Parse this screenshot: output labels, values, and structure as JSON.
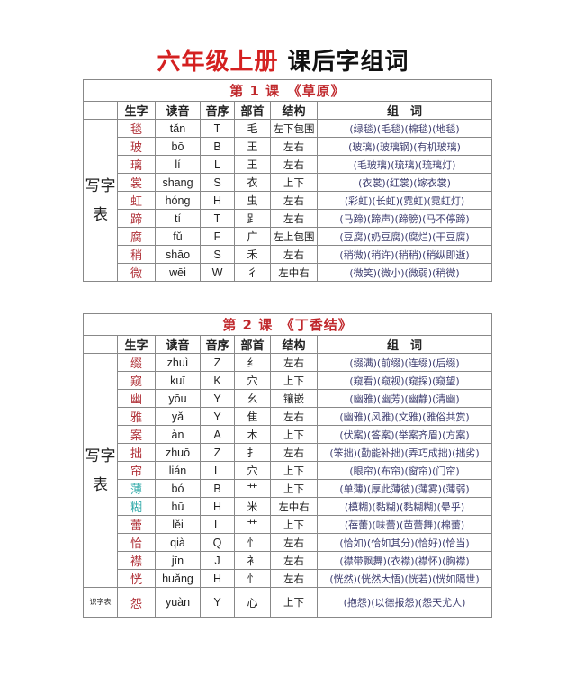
{
  "title": {
    "grade": "六年级上册",
    "subtitle": "课后字组词"
  },
  "headers": [
    "生字",
    "读音",
    "音序",
    "部首",
    "结构",
    "组　词"
  ],
  "side_label": "写字表",
  "lessons": [
    {
      "heading": "第 1 课　《草原》",
      "rows": [
        {
          "char": "毯",
          "pinyin": "tǎn",
          "initial": "T",
          "radical": "毛",
          "structure": "左下包围",
          "words": "(绿毯)(毛毯)(棉毯)(地毯)"
        },
        {
          "char": "玻",
          "pinyin": "bō",
          "initial": "B",
          "radical": "王",
          "structure": "左右",
          "words": "(玻璃)(玻璃钢)(有机玻璃)"
        },
        {
          "char": "璃",
          "pinyin": "lí",
          "initial": "L",
          "radical": "王",
          "structure": "左右",
          "words": "(毛玻璃)(琉璃)(琉璃灯)"
        },
        {
          "char": "裳",
          "pinyin": "shang",
          "initial": "S",
          "radical": "衣",
          "structure": "上下",
          "words": "(衣裳)(红裳)(嫁衣裳)"
        },
        {
          "char": "虹",
          "pinyin": "hóng",
          "initial": "H",
          "radical": "虫",
          "structure": "左右",
          "words": "(彩虹)(长虹)(霓虹)(霓虹灯)"
        },
        {
          "char": "蹄",
          "pinyin": "tí",
          "initial": "T",
          "radical": "⻊",
          "structure": "左右",
          "words": "(马蹄)(蹄声)(蹄膀)(马不停蹄)"
        },
        {
          "char": "腐",
          "pinyin": "fǔ",
          "initial": "F",
          "radical": "广",
          "structure": "左上包围",
          "words": "(豆腐)(奶豆腐)(腐烂)(干豆腐)"
        },
        {
          "char": "稍",
          "pinyin": "shāo",
          "initial": "S",
          "radical": "禾",
          "structure": "左右",
          "words": "(稍微)(稍许)(稍稍)(稍纵即逝)"
        },
        {
          "char": "微",
          "pinyin": "wēi",
          "initial": "W",
          "radical": "彳",
          "structure": "左中右",
          "words": "(微笑)(微小)(微弱)(稍微)"
        }
      ]
    },
    {
      "heading": "第 2 课　《丁香结》",
      "footer_label": "识字表",
      "rows": [
        {
          "char": "缀",
          "pinyin": "zhuì",
          "initial": "Z",
          "radical": "纟",
          "structure": "左右",
          "words": "(缀满)(前缀)(连缀)(后缀)"
        },
        {
          "char": "窥",
          "pinyin": "kuī",
          "initial": "K",
          "radical": "穴",
          "structure": "上下",
          "words": "(窥看)(窥视)(窥探)(窥望)"
        },
        {
          "char": "幽",
          "pinyin": "yōu",
          "initial": "Y",
          "radical": "幺",
          "structure": "镶嵌",
          "words": "(幽雅)(幽芳)(幽静)(清幽)"
        },
        {
          "char": "雅",
          "pinyin": "yǎ",
          "initial": "Y",
          "radical": "隹",
          "structure": "左右",
          "words": "(幽雅)(风雅)(文雅)(雅俗共赏)"
        },
        {
          "char": "案",
          "pinyin": "àn",
          "initial": "A",
          "radical": "木",
          "structure": "上下",
          "words": "(伏案)(答案)(举案齐眉)(方案)"
        },
        {
          "char": "拙",
          "pinyin": "zhuō",
          "initial": "Z",
          "radical": "扌",
          "structure": "左右",
          "words": "(笨拙)(勤能补拙)(弄巧成拙)(拙劣)"
        },
        {
          "char": "帘",
          "pinyin": "lián",
          "initial": "L",
          "radical": "穴",
          "structure": "上下",
          "words": "(眼帘)(布帘)(窗帘)(门帘)"
        },
        {
          "char": "薄",
          "pinyin": "bó",
          "initial": "B",
          "radical": "艹",
          "structure": "上下",
          "words": "(单薄)(厚此薄彼)(薄雾)(薄弱)",
          "teal": true
        },
        {
          "char": "糊",
          "pinyin": "hū",
          "initial": "H",
          "radical": "米",
          "structure": "左中右",
          "words": "(模糊)(黏糊)(黏糊糊)(晕乎)",
          "teal": true
        },
        {
          "char": "蕾",
          "pinyin": "lěi",
          "initial": "L",
          "radical": "艹",
          "structure": "上下",
          "words": "(蓓蕾)(味蕾)(芭蕾舞)(棉蕾)"
        },
        {
          "char": "恰",
          "pinyin": "qià",
          "initial": "Q",
          "radical": "忄",
          "structure": "左右",
          "words": "(恰如)(恰如其分)(恰好)(恰当)"
        },
        {
          "char": "襟",
          "pinyin": "jīn",
          "initial": "J",
          "radical": "衤",
          "structure": "左右",
          "words": "(襟带飘舞)(衣襟)(襟怀)(胸襟)"
        },
        {
          "char": "恍",
          "pinyin": "huǎng",
          "initial": "H",
          "radical": "忄",
          "structure": "左右",
          "words": "(恍然)(恍然大悟)(恍若)(恍如隔世)"
        }
      ],
      "footer_row": {
        "char": "怨",
        "pinyin": "yuàn",
        "initial": "Y",
        "radical": "心",
        "structure": "上下",
        "words": "(抱怨)(以德报怨)(怨天尤人)"
      }
    }
  ]
}
